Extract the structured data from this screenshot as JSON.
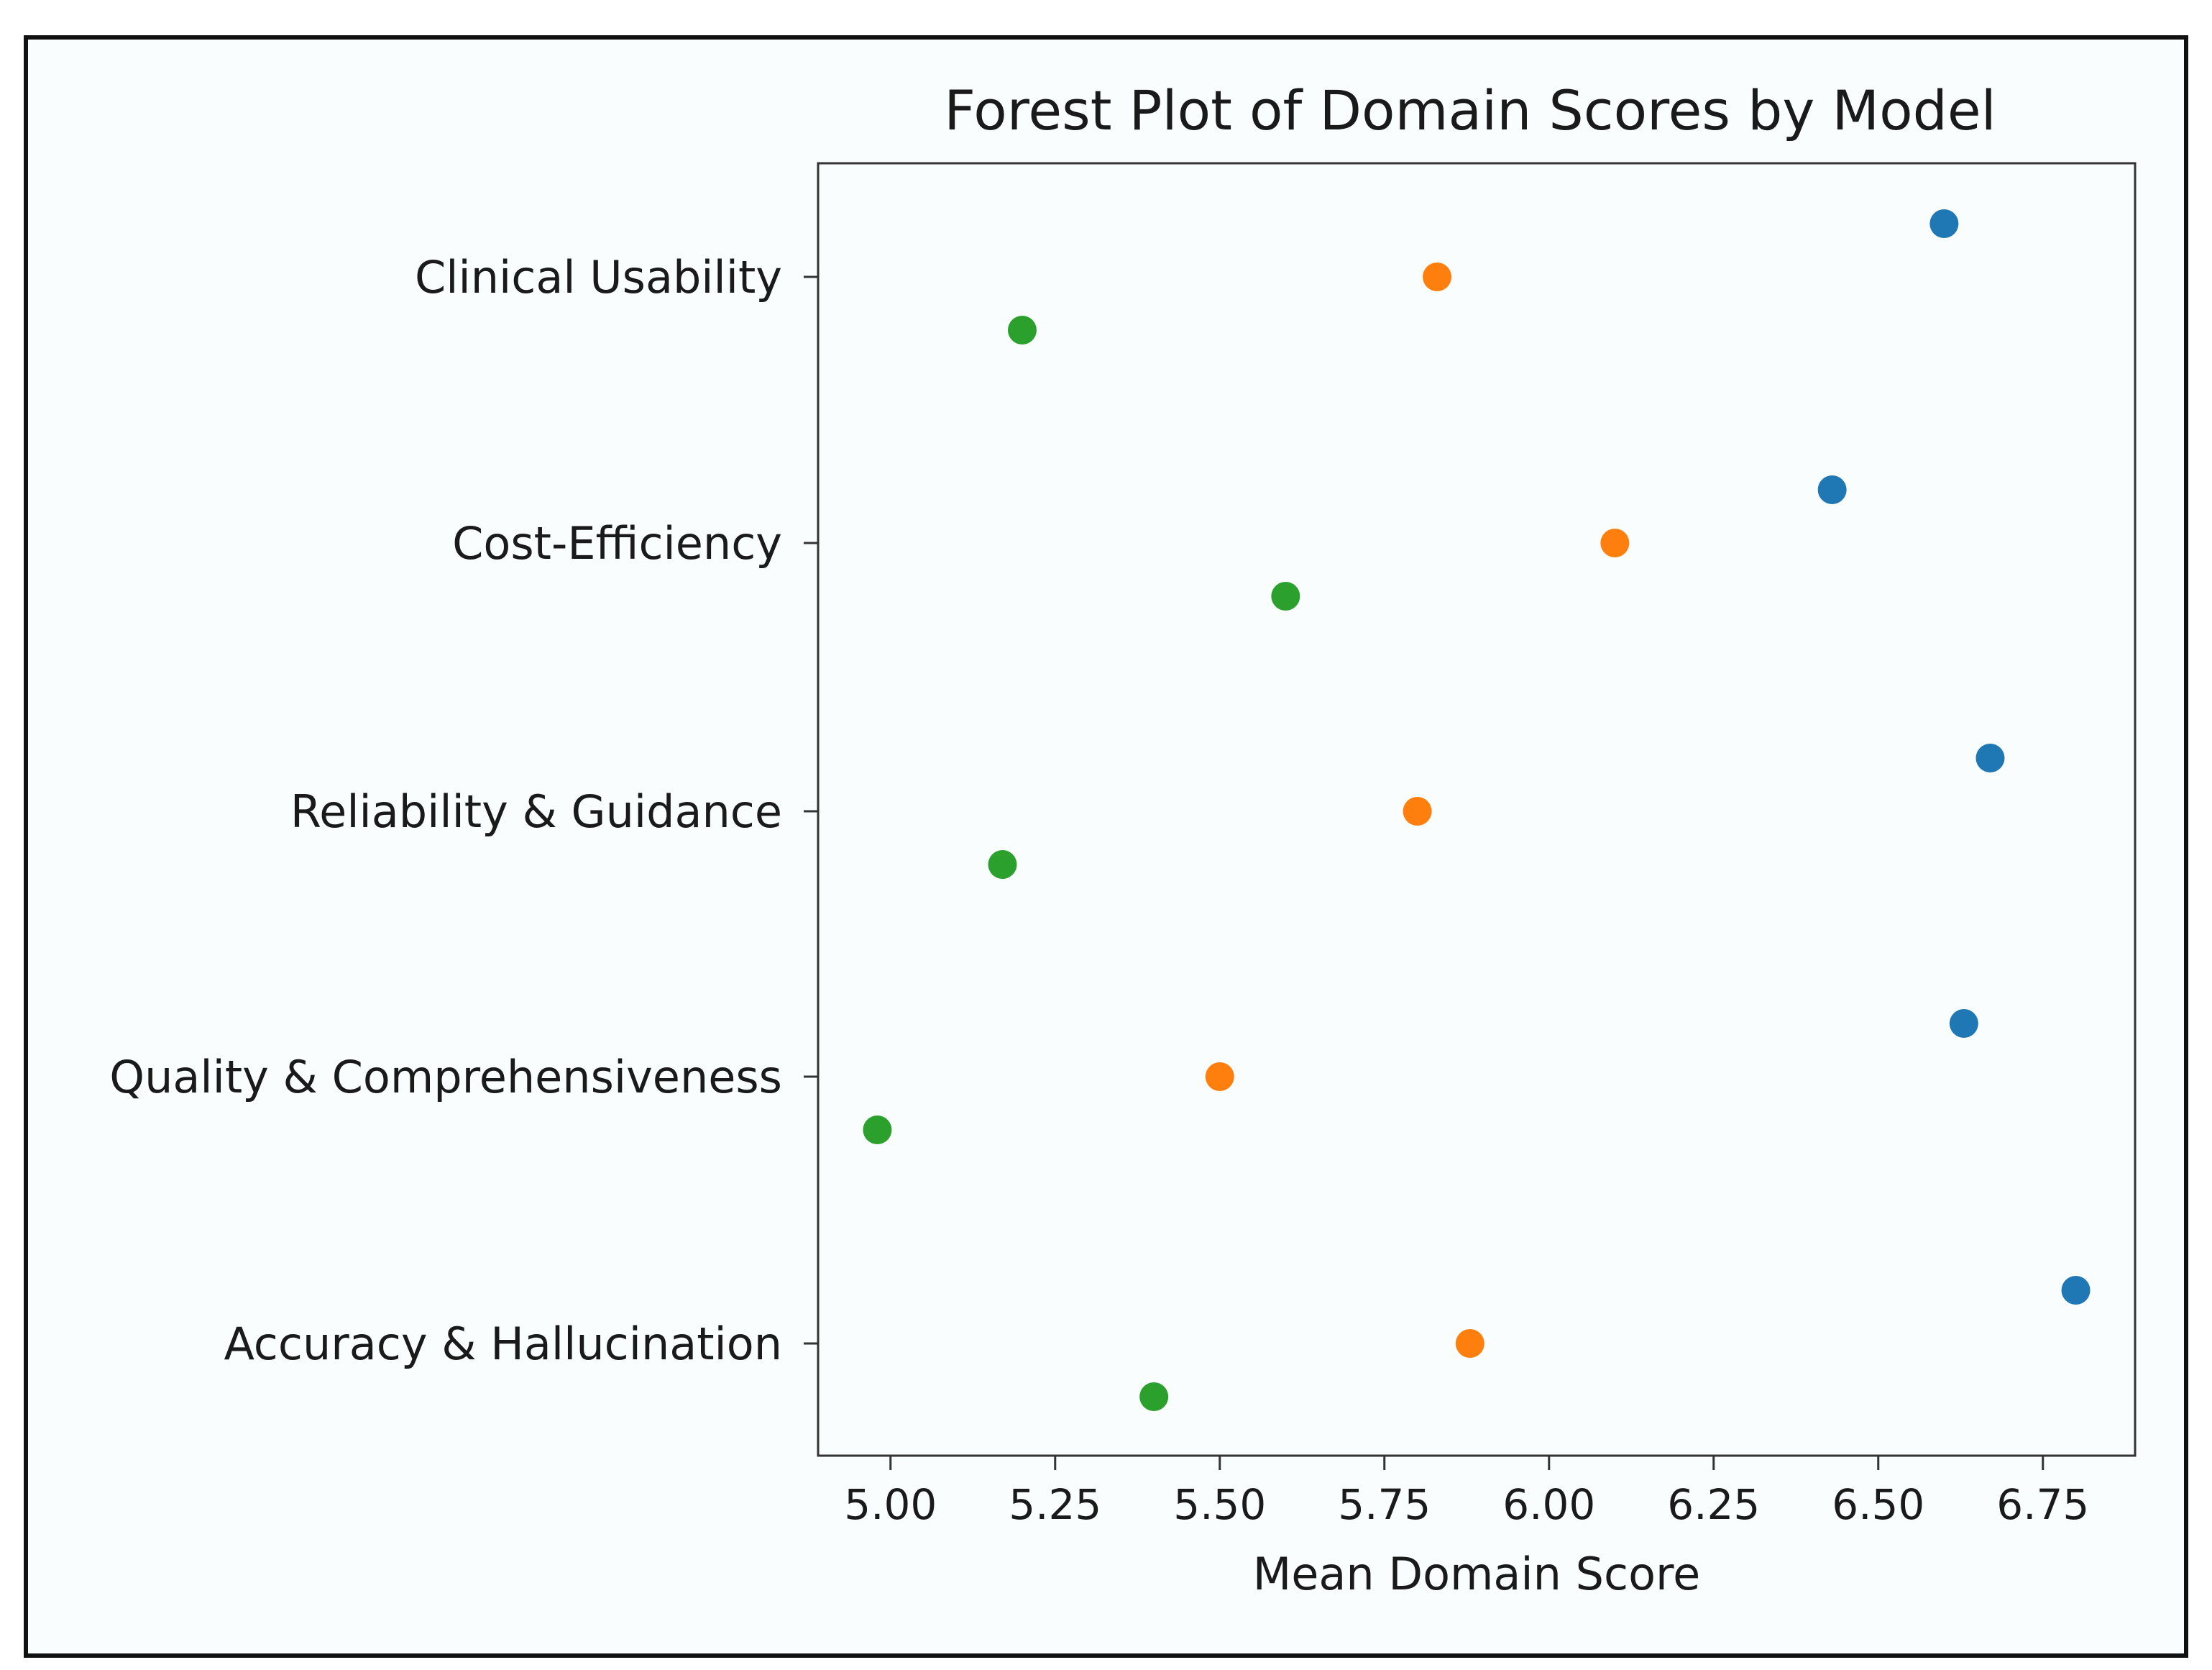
{
  "chart_data": {
    "type": "scatter",
    "title": "Forest Plot of Domain Scores by Model",
    "xlabel": "Mean Domain Score",
    "ylabel": "",
    "xlim": [
      4.89,
      6.89
    ],
    "xticks": [
      5.0,
      5.25,
      5.5,
      5.75,
      6.0,
      6.25,
      6.5,
      6.75
    ],
    "xtick_labels": [
      "5.00",
      "5.25",
      "5.50",
      "5.75",
      "6.00",
      "6.25",
      "6.50",
      "6.75"
    ],
    "categories": [
      "Clinical Usability",
      "Cost-Efficiency",
      "Reliability & Guidance",
      "Quality & Comprehensiveness",
      "Accuracy & Hallucination"
    ],
    "series": [
      {
        "color": "#1f77b4",
        "values": [
          6.6,
          6.43,
          6.67,
          6.63,
          6.8
        ]
      },
      {
        "color": "#ff7f0e",
        "values": [
          5.83,
          6.1,
          5.8,
          5.5,
          5.88
        ]
      },
      {
        "color": "#2ca02c",
        "values": [
          5.2,
          5.6,
          5.17,
          4.98,
          5.4
        ]
      }
    ],
    "grid": false,
    "legend": "none"
  },
  "colors": {
    "background": "#f9fdfd",
    "frame_border": "#111111",
    "axes_border": "#333333"
  }
}
